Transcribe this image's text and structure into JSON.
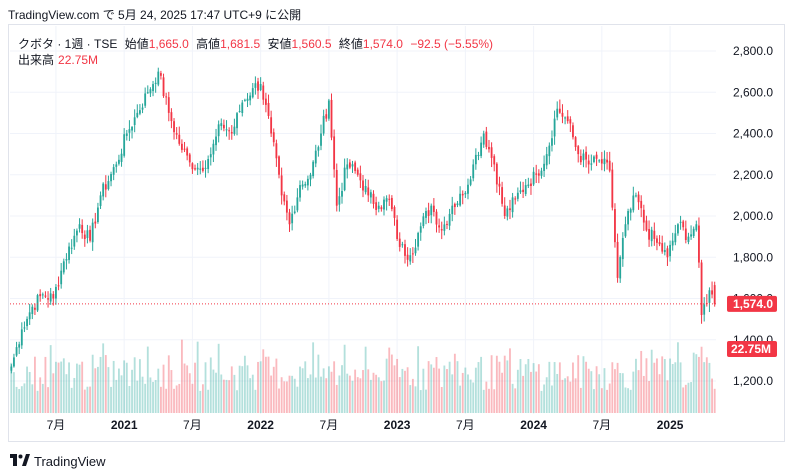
{
  "caption": "TradingView.com で 5月 24, 2025 17:47 UTC+9 に公開",
  "legend": {
    "symbol": "クボタ · 1週 · TSE",
    "open_label": "始値",
    "open_value": "1,665.0",
    "high_label": "高値",
    "high_value": "1,681.5",
    "low_label": "安値",
    "low_value": "1,560.5",
    "close_label": "終値",
    "close_value": "1,574.0",
    "change": "−92.5 (−5.55%)",
    "volume_label": "出来高",
    "volume_value": "22.75M"
  },
  "footer": {
    "logo_icon": "tradingview-logo-icon",
    "brand": "TradingView"
  },
  "colors": {
    "up": "#26a69a",
    "down": "#f23645",
    "grid": "#f0f3fa",
    "price_line": "#f23645"
  },
  "chart_data": {
    "type": "candlestick",
    "interval": "weekly",
    "ylim": [
      1100,
      2900
    ],
    "y_ticks": [
      "1,200.0",
      "1,400.0",
      "1,600.0",
      "1,800.0",
      "2,000.0",
      "2,200.0",
      "2,400.0",
      "2,600.0",
      "2,800.0"
    ],
    "y_tick_values": [
      1200,
      1400,
      1600,
      1800,
      2000,
      2200,
      2400,
      2600,
      2800
    ],
    "x_ticks": [
      {
        "label": "7月",
        "week": 17
      },
      {
        "label": "2021",
        "week": 43
      },
      {
        "label": "7月",
        "week": 69
      },
      {
        "label": "2022",
        "week": 95
      },
      {
        "label": "7月",
        "week": 121
      },
      {
        "label": "2023",
        "week": 147
      },
      {
        "label": "7月",
        "week": 173
      },
      {
        "label": "2024",
        "week": 199
      },
      {
        "label": "7月",
        "week": 225
      },
      {
        "label": "2025",
        "week": 251
      }
    ],
    "last_price_label": "1,574.0",
    "last_price": 1574.0,
    "last_volume_label": "22.75M",
    "anchors": [
      [
        0,
        1270
      ],
      [
        4,
        1450
      ],
      [
        8,
        1560
      ],
      [
        12,
        1620
      ],
      [
        16,
        1600
      ],
      [
        20,
        1780
      ],
      [
        26,
        1960
      ],
      [
        30,
        1880
      ],
      [
        34,
        2100
      ],
      [
        40,
        2250
      ],
      [
        44,
        2400
      ],
      [
        48,
        2500
      ],
      [
        52,
        2600
      ],
      [
        56,
        2700
      ],
      [
        60,
        2500
      ],
      [
        64,
        2350
      ],
      [
        68,
        2260
      ],
      [
        72,
        2230
      ],
      [
        76,
        2300
      ],
      [
        80,
        2450
      ],
      [
        84,
        2400
      ],
      [
        88,
        2550
      ],
      [
        92,
        2620
      ],
      [
        95,
        2640
      ],
      [
        99,
        2400
      ],
      [
        103,
        2100
      ],
      [
        106,
        1960
      ],
      [
        110,
        2150
      ],
      [
        114,
        2200
      ],
      [
        118,
        2400
      ],
      [
        121,
        2560
      ],
      [
        124,
        2050
      ],
      [
        128,
        2250
      ],
      [
        132,
        2200
      ],
      [
        136,
        2100
      ],
      [
        140,
        2050
      ],
      [
        144,
        2080
      ],
      [
        148,
        1850
      ],
      [
        152,
        1810
      ],
      [
        156,
        1950
      ],
      [
        160,
        2050
      ],
      [
        164,
        1930
      ],
      [
        168,
        2050
      ],
      [
        172,
        2100
      ],
      [
        176,
        2250
      ],
      [
        180,
        2400
      ],
      [
        184,
        2250
      ],
      [
        188,
        2000
      ],
      [
        192,
        2080
      ],
      [
        196,
        2150
      ],
      [
        200,
        2200
      ],
      [
        204,
        2300
      ],
      [
        208,
        2520
      ],
      [
        212,
        2460
      ],
      [
        216,
        2300
      ],
      [
        220,
        2250
      ],
      [
        224,
        2270
      ],
      [
        228,
        2220
      ],
      [
        231,
        1700
      ],
      [
        234,
        1960
      ],
      [
        238,
        2100
      ],
      [
        242,
        1930
      ],
      [
        246,
        1870
      ],
      [
        250,
        1800
      ],
      [
        254,
        1960
      ],
      [
        258,
        1900
      ],
      [
        261,
        1960
      ],
      [
        263,
        1520
      ],
      [
        266,
        1640
      ],
      [
        268,
        1574
      ]
    ],
    "last_candle": {
      "open": 1665.0,
      "high": 1681.5,
      "low": 1560.5,
      "close": 1574.0
    }
  }
}
